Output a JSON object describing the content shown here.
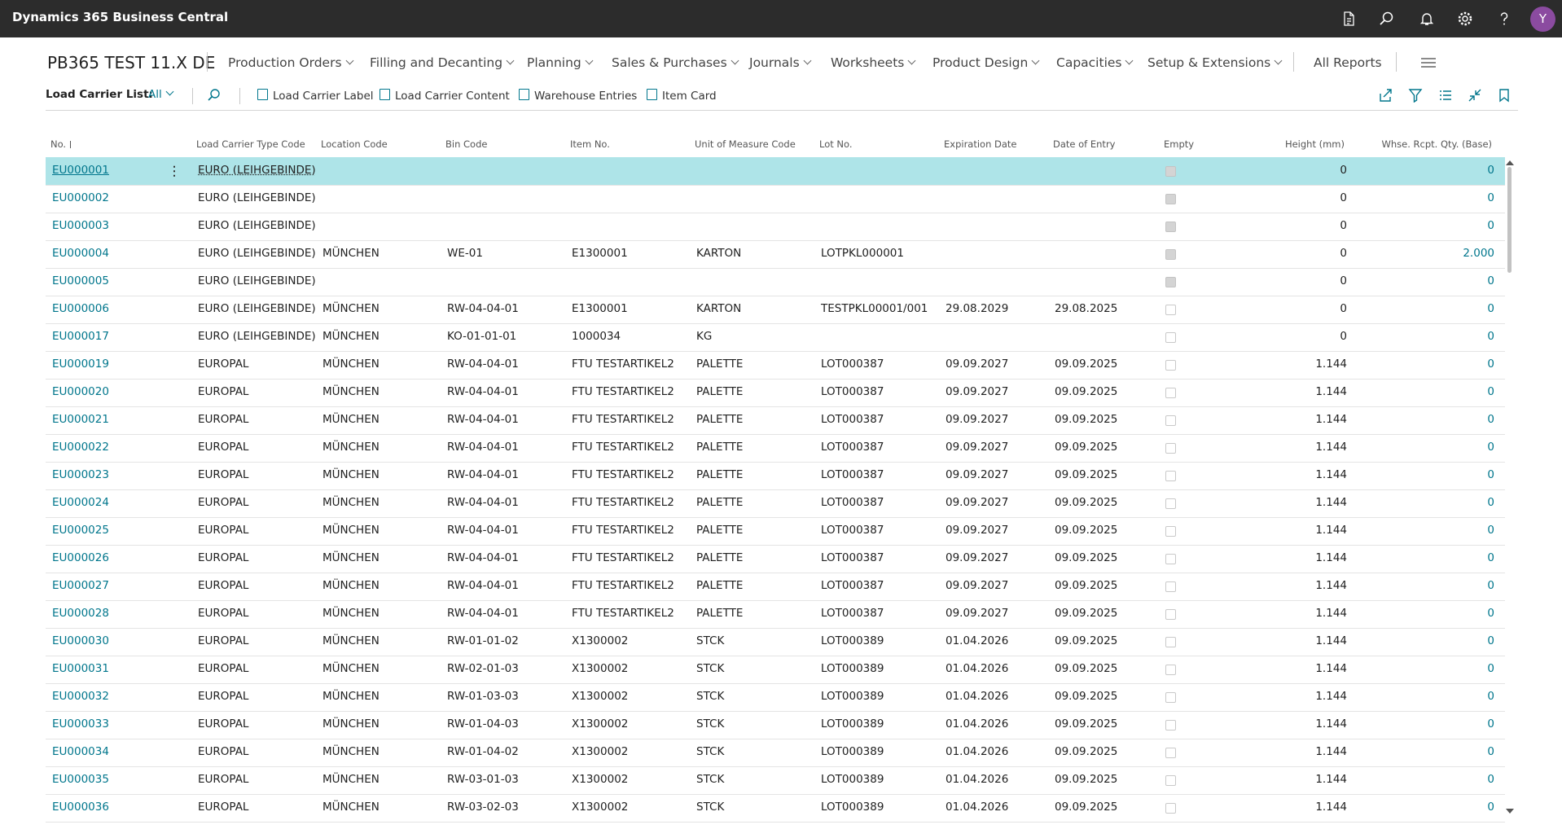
{
  "header": {
    "app_title": "Dynamics 365 Business Central",
    "avatar": "Y"
  },
  "nav": {
    "company": "PB365 TEST 11.X DE",
    "menus": [
      "Production Orders",
      "Filling and Decanting",
      "Planning",
      "Sales & Purchases",
      "Journals",
      "Worksheets",
      "Product Design",
      "Capacities",
      "Setup & Extensions"
    ],
    "all_reports": "All Reports"
  },
  "action_bar": {
    "list_label": "Load Carrier List:",
    "filter": "All",
    "actions": [
      "Load Carrier Label",
      "Load Carrier Content",
      "Warehouse Entries",
      "Item Card"
    ]
  },
  "table": {
    "columns": [
      "No.",
      "Load Carrier Type Code",
      "Location Code",
      "Bin Code",
      "Item No.",
      "Unit of Measure Code",
      "Lot No.",
      "Expiration Date",
      "Date of Entry",
      "Empty",
      "Height (mm)",
      "Whse. Rcpt. Qty. (Base)"
    ],
    "rows": [
      [
        "EU000001",
        "EURO (LEIHGEBINDE)",
        null,
        null,
        null,
        null,
        null,
        null,
        null,
        true,
        "0",
        "0"
      ],
      [
        "EU000002",
        "EURO (LEIHGEBINDE)",
        null,
        null,
        null,
        null,
        null,
        null,
        null,
        true,
        "0",
        "0"
      ],
      [
        "EU000003",
        "EURO (LEIHGEBINDE)",
        null,
        null,
        null,
        null,
        null,
        null,
        null,
        true,
        "0",
        "0"
      ],
      [
        "EU000004",
        "EURO (LEIHGEBINDE)",
        "MÜNCHEN",
        "WE-01",
        "E1300001",
        "KARTON",
        "LOTPKL000001",
        null,
        null,
        true,
        "0",
        "2.000"
      ],
      [
        "EU000005",
        "EURO (LEIHGEBINDE)",
        null,
        null,
        null,
        null,
        null,
        null,
        null,
        true,
        "0",
        "0"
      ],
      [
        "EU000006",
        "EURO (LEIHGEBINDE)",
        "MÜNCHEN",
        "RW-04-04-01",
        "E1300001",
        "KARTON",
        "TESTPKL00001/001",
        "29.08.2029",
        "29.08.2025",
        false,
        "0",
        "0"
      ],
      [
        "EU000017",
        "EURO (LEIHGEBINDE)",
        "MÜNCHEN",
        "KO-01-01-01",
        "1000034",
        "KG",
        null,
        null,
        null,
        false,
        "0",
        "0"
      ],
      [
        "EU000019",
        "EUROPAL",
        "MÜNCHEN",
        "RW-04-04-01",
        "FTU TESTARTIKEL2",
        "PALETTE",
        "LOT000387",
        "09.09.2027",
        "09.09.2025",
        false,
        "1.144",
        "0"
      ],
      [
        "EU000020",
        "EUROPAL",
        "MÜNCHEN",
        "RW-04-04-01",
        "FTU TESTARTIKEL2",
        "PALETTE",
        "LOT000387",
        "09.09.2027",
        "09.09.2025",
        false,
        "1.144",
        "0"
      ],
      [
        "EU000021",
        "EUROPAL",
        "MÜNCHEN",
        "RW-04-04-01",
        "FTU TESTARTIKEL2",
        "PALETTE",
        "LOT000387",
        "09.09.2027",
        "09.09.2025",
        false,
        "1.144",
        "0"
      ],
      [
        "EU000022",
        "EUROPAL",
        "MÜNCHEN",
        "RW-04-04-01",
        "FTU TESTARTIKEL2",
        "PALETTE",
        "LOT000387",
        "09.09.2027",
        "09.09.2025",
        false,
        "1.144",
        "0"
      ],
      [
        "EU000023",
        "EUROPAL",
        "MÜNCHEN",
        "RW-04-04-01",
        "FTU TESTARTIKEL2",
        "PALETTE",
        "LOT000387",
        "09.09.2027",
        "09.09.2025",
        false,
        "1.144",
        "0"
      ],
      [
        "EU000024",
        "EUROPAL",
        "MÜNCHEN",
        "RW-04-04-01",
        "FTU TESTARTIKEL2",
        "PALETTE",
        "LOT000387",
        "09.09.2027",
        "09.09.2025",
        false,
        "1.144",
        "0"
      ],
      [
        "EU000025",
        "EUROPAL",
        "MÜNCHEN",
        "RW-04-04-01",
        "FTU TESTARTIKEL2",
        "PALETTE",
        "LOT000387",
        "09.09.2027",
        "09.09.2025",
        false,
        "1.144",
        "0"
      ],
      [
        "EU000026",
        "EUROPAL",
        "MÜNCHEN",
        "RW-04-04-01",
        "FTU TESTARTIKEL2",
        "PALETTE",
        "LOT000387",
        "09.09.2027",
        "09.09.2025",
        false,
        "1.144",
        "0"
      ],
      [
        "EU000027",
        "EUROPAL",
        "MÜNCHEN",
        "RW-04-04-01",
        "FTU TESTARTIKEL2",
        "PALETTE",
        "LOT000387",
        "09.09.2027",
        "09.09.2025",
        false,
        "1.144",
        "0"
      ],
      [
        "EU000028",
        "EUROPAL",
        "MÜNCHEN",
        "RW-04-04-01",
        "FTU TESTARTIKEL2",
        "PALETTE",
        "LOT000387",
        "09.09.2027",
        "09.09.2025",
        false,
        "1.144",
        "0"
      ],
      [
        "EU000030",
        "EUROPAL",
        "MÜNCHEN",
        "RW-01-01-02",
        "X1300002",
        "STCK",
        "LOT000389",
        "01.04.2026",
        "09.09.2025",
        false,
        "1.144",
        "0"
      ],
      [
        "EU000031",
        "EUROPAL",
        "MÜNCHEN",
        "RW-02-01-03",
        "X1300002",
        "STCK",
        "LOT000389",
        "01.04.2026",
        "09.09.2025",
        false,
        "1.144",
        "0"
      ],
      [
        "EU000032",
        "EUROPAL",
        "MÜNCHEN",
        "RW-01-03-03",
        "X1300002",
        "STCK",
        "LOT000389",
        "01.04.2026",
        "09.09.2025",
        false,
        "1.144",
        "0"
      ],
      [
        "EU000033",
        "EUROPAL",
        "MÜNCHEN",
        "RW-01-04-03",
        "X1300002",
        "STCK",
        "LOT000389",
        "01.04.2026",
        "09.09.2025",
        false,
        "1.144",
        "0"
      ],
      [
        "EU000034",
        "EUROPAL",
        "MÜNCHEN",
        "RW-01-04-02",
        "X1300002",
        "STCK",
        "LOT000389",
        "01.04.2026",
        "09.09.2025",
        false,
        "1.144",
        "0"
      ],
      [
        "EU000035",
        "EUROPAL",
        "MÜNCHEN",
        "RW-03-01-03",
        "X1300002",
        "STCK",
        "LOT000389",
        "01.04.2026",
        "09.09.2025",
        false,
        "1.144",
        "0"
      ],
      [
        "EU000036",
        "EUROPAL",
        "MÜNCHEN",
        "RW-03-02-03",
        "X1300002",
        "STCK",
        "LOT000389",
        "01.04.2026",
        "09.09.2025",
        false,
        "1.144",
        "0"
      ]
    ]
  }
}
